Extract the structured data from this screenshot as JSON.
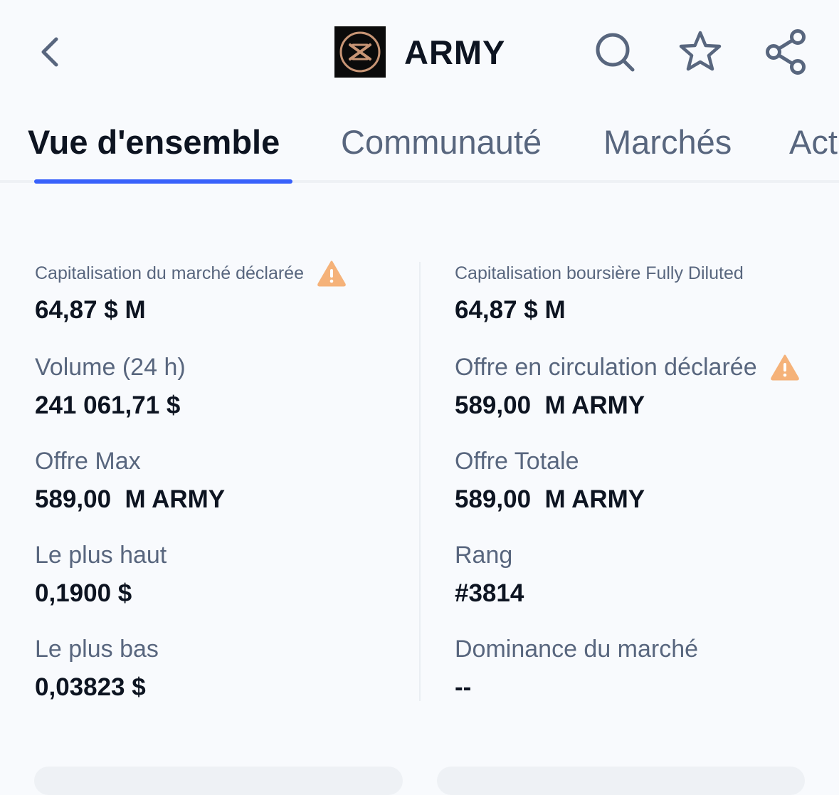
{
  "header": {
    "title": "ARMY",
    "icons": {
      "back": "chevron-left-icon",
      "search": "search-icon",
      "favorite": "star-icon",
      "share": "share-icon"
    }
  },
  "tabs": [
    {
      "label": "Vue d'ensemble",
      "active": true
    },
    {
      "label": "Communauté",
      "active": false
    },
    {
      "label": "Marchés",
      "active": false
    },
    {
      "label": "Act",
      "active": false
    }
  ],
  "stats": {
    "left": [
      {
        "label": "Capitalisation du marché déclarée",
        "value": "64,87 $ M",
        "warning": true
      },
      {
        "label": "Volume (24 h)",
        "value": "241 061,71 $"
      },
      {
        "label": "Offre Max",
        "value": "589,00  M ARMY"
      },
      {
        "label": "Le plus haut",
        "value": "0,1900 $"
      },
      {
        "label": "Le plus bas",
        "value": "0,03823 $"
      }
    ],
    "right": [
      {
        "label": "Capitalisation boursière Fully Diluted",
        "value": "64,87 $ M"
      },
      {
        "label": "Offre en circulation déclarée",
        "value": "589,00  M ARMY",
        "warning": true
      },
      {
        "label": "Offre Totale",
        "value": "589,00  M ARMY"
      },
      {
        "label": "Rang",
        "value": "#3814"
      },
      {
        "label": "Dominance du marché",
        "value": "--"
      }
    ]
  },
  "colors": {
    "background": "#f8fafd",
    "text_primary": "#0d1421",
    "text_secondary": "#58667e",
    "accent": "#3861fb",
    "warning": "#f5b279"
  }
}
